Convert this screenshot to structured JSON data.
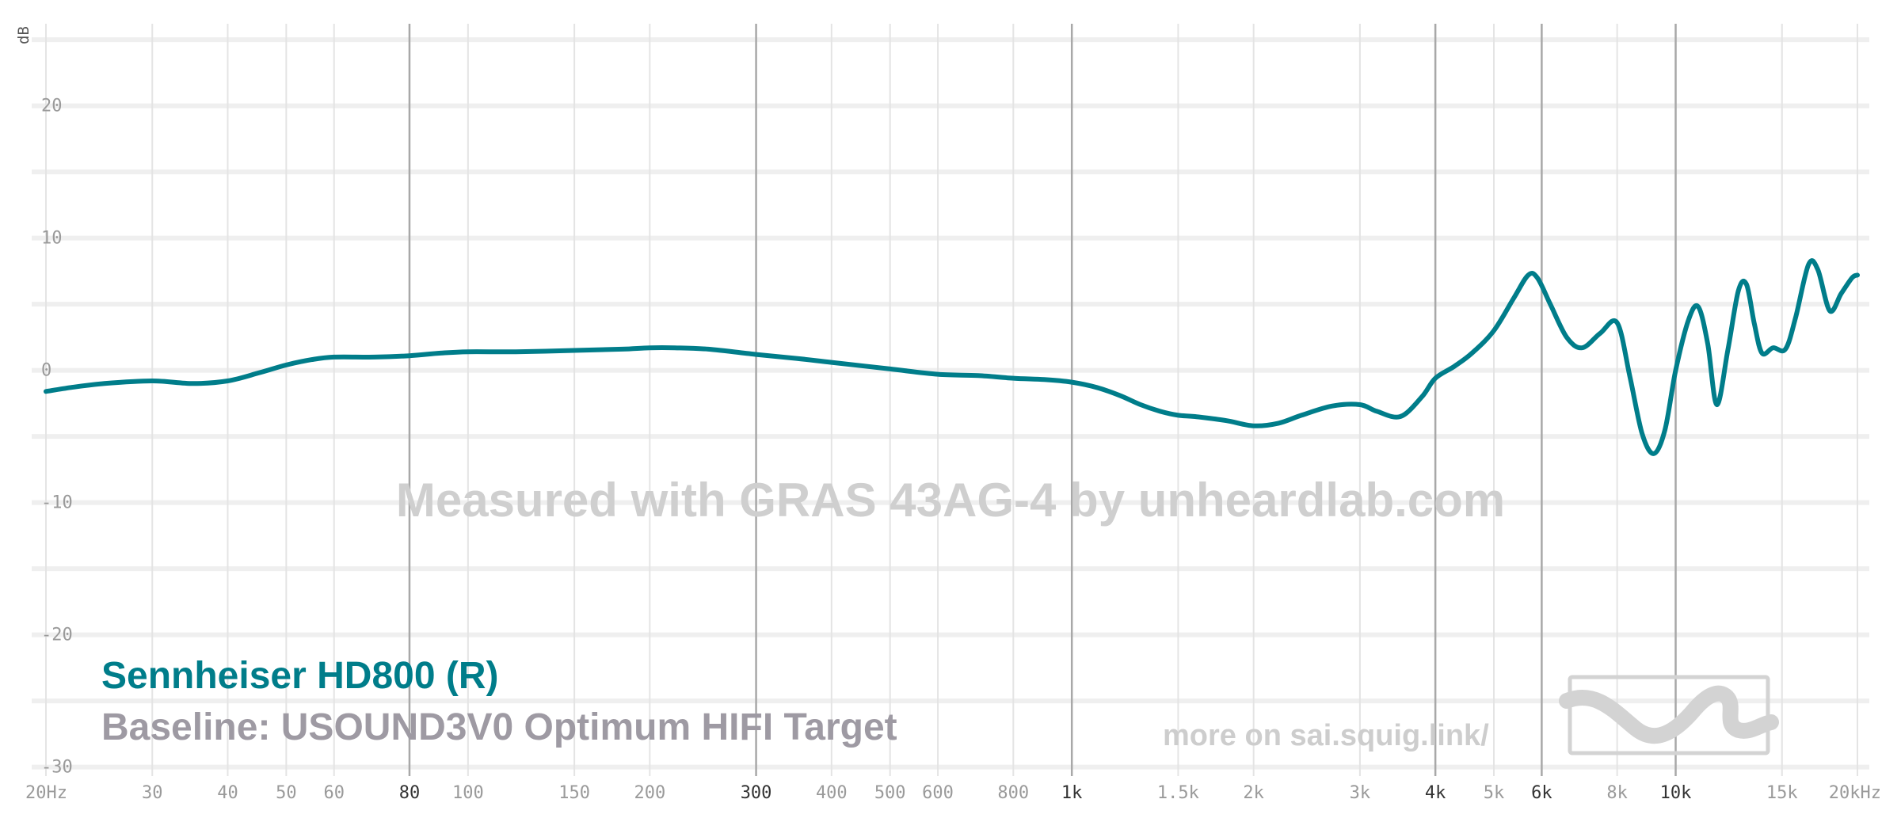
{
  "chart_data": {
    "type": "line",
    "y_unit": "dB",
    "x_scale": "log",
    "xlim": [
      20,
      20000
    ],
    "ylim": [
      -32,
      28
    ],
    "grid": true,
    "y_ticks": [
      20,
      10,
      0,
      -10,
      -20,
      -30
    ],
    "y_tick_labels": [
      "20",
      "10",
      "0",
      "-10",
      "-20",
      "-30"
    ],
    "x_ticks": [
      {
        "f": 20,
        "label": "20Hz",
        "major": false
      },
      {
        "f": 30,
        "label": "30",
        "major": false
      },
      {
        "f": 40,
        "label": "40",
        "major": false
      },
      {
        "f": 50,
        "label": "50",
        "major": false
      },
      {
        "f": 60,
        "label": "60",
        "major": false
      },
      {
        "f": 80,
        "label": "80",
        "major": true
      },
      {
        "f": 100,
        "label": "100",
        "major": false
      },
      {
        "f": 150,
        "label": "150",
        "major": false
      },
      {
        "f": 200,
        "label": "200",
        "major": false
      },
      {
        "f": 300,
        "label": "300",
        "major": true
      },
      {
        "f": 400,
        "label": "400",
        "major": false
      },
      {
        "f": 500,
        "label": "500",
        "major": false
      },
      {
        "f": 600,
        "label": "600",
        "major": false
      },
      {
        "f": 800,
        "label": "800",
        "major": false
      },
      {
        "f": 1000,
        "label": "1k",
        "major": true
      },
      {
        "f": 1500,
        "label": "1.5k",
        "major": false
      },
      {
        "f": 2000,
        "label": "2k",
        "major": false
      },
      {
        "f": 3000,
        "label": "3k",
        "major": false
      },
      {
        "f": 4000,
        "label": "4k",
        "major": true
      },
      {
        "f": 5000,
        "label": "5k",
        "major": false
      },
      {
        "f": 6000,
        "label": "6k",
        "major": true
      },
      {
        "f": 8000,
        "label": "8k",
        "major": false
      },
      {
        "f": 10000,
        "label": "10k",
        "major": true
      },
      {
        "f": 15000,
        "label": "15k",
        "major": false
      },
      {
        "f": 20000,
        "label": "20kHz",
        "major": false
      }
    ],
    "series": [
      {
        "name": "Sennheiser HD800 (R)",
        "color": "#007d8a",
        "points": [
          [
            20,
            -1.6
          ],
          [
            22,
            -1.3
          ],
          [
            25,
            -1.0
          ],
          [
            30,
            -0.8
          ],
          [
            35,
            -1.0
          ],
          [
            40,
            -0.8
          ],
          [
            45,
            -0.2
          ],
          [
            50,
            0.4
          ],
          [
            55,
            0.8
          ],
          [
            60,
            1.0
          ],
          [
            70,
            1.0
          ],
          [
            80,
            1.1
          ],
          [
            90,
            1.3
          ],
          [
            100,
            1.4
          ],
          [
            120,
            1.4
          ],
          [
            150,
            1.5
          ],
          [
            180,
            1.6
          ],
          [
            200,
            1.7
          ],
          [
            220,
            1.7
          ],
          [
            250,
            1.6
          ],
          [
            300,
            1.2
          ],
          [
            350,
            0.9
          ],
          [
            400,
            0.6
          ],
          [
            500,
            0.1
          ],
          [
            600,
            -0.3
          ],
          [
            700,
            -0.4
          ],
          [
            800,
            -0.6
          ],
          [
            900,
            -0.7
          ],
          [
            1000,
            -0.9
          ],
          [
            1100,
            -1.3
          ],
          [
            1200,
            -1.9
          ],
          [
            1300,
            -2.6
          ],
          [
            1400,
            -3.1
          ],
          [
            1500,
            -3.4
          ],
          [
            1600,
            -3.5
          ],
          [
            1800,
            -3.8
          ],
          [
            2000,
            -4.2
          ],
          [
            2200,
            -4.0
          ],
          [
            2400,
            -3.4
          ],
          [
            2700,
            -2.7
          ],
          [
            3000,
            -2.6
          ],
          [
            3200,
            -3.1
          ],
          [
            3500,
            -3.5
          ],
          [
            3800,
            -2.0
          ],
          [
            4000,
            -0.6
          ],
          [
            4300,
            0.3
          ],
          [
            4600,
            1.3
          ],
          [
            5000,
            3.0
          ],
          [
            5400,
            5.5
          ],
          [
            5700,
            7.2
          ],
          [
            5900,
            7.0
          ],
          [
            6200,
            5.0
          ],
          [
            6600,
            2.5
          ],
          [
            7000,
            1.7
          ],
          [
            7500,
            2.8
          ],
          [
            8000,
            3.6
          ],
          [
            8400,
            -0.5
          ],
          [
            8800,
            -4.8
          ],
          [
            9200,
            -6.3
          ],
          [
            9600,
            -4.5
          ],
          [
            10000,
            0.0
          ],
          [
            10500,
            3.8
          ],
          [
            10900,
            4.8
          ],
          [
            11300,
            2.0
          ],
          [
            11700,
            -2.6
          ],
          [
            12200,
            1.5
          ],
          [
            12700,
            6.0
          ],
          [
            13100,
            6.5
          ],
          [
            13500,
            3.5
          ],
          [
            13900,
            1.3
          ],
          [
            14500,
            1.7
          ],
          [
            15200,
            1.6
          ],
          [
            15800,
            4.0
          ],
          [
            16600,
            8.0
          ],
          [
            17200,
            7.6
          ],
          [
            18000,
            4.5
          ],
          [
            18800,
            5.8
          ],
          [
            19600,
            7.0
          ],
          [
            20000,
            7.2
          ]
        ]
      }
    ],
    "baseline": "USOUND3V0 Optimum HIFI Target"
  },
  "legend": {
    "main": "Sennheiser HD800 (R)",
    "baseline": "Baseline: USOUND3V0 Optimum HIFI Target"
  },
  "watermark": "Measured with GRAS 43AG-4 by unheardlab.com",
  "link": "more on sai.squig.link/",
  "colors": {
    "series": "#007d8a",
    "baseline_text": "#9e9aa3",
    "watermark": "#cfcfcf",
    "grid_minor": "#e4e4e4",
    "grid_major": "#a8a8a8"
  }
}
